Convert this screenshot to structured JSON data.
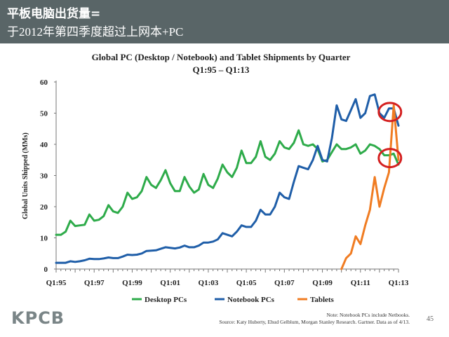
{
  "header": {
    "line1": "平板电脑出货量=",
    "line2": "于2012年第四季度超过上网本+PC"
  },
  "chart_data": {
    "type": "line",
    "title": "Global PC (Desktop / Notebook) and Tablet Shipments by Quarter",
    "subtitle": "Q1:95 – Q1:13",
    "ylabel": "Global Units Shipped (MMs)",
    "xlabel": "",
    "ylim": [
      0,
      60
    ],
    "yticks": [
      0,
      10,
      20,
      30,
      40,
      50,
      60
    ],
    "xtick_labels": [
      "Q1:95",
      "Q1:97",
      "Q1:99",
      "Q1:01",
      "Q1:03",
      "Q1:05",
      "Q1:07",
      "Q1:09",
      "Q1:11",
      "Q1:13"
    ],
    "xtick_index": [
      0,
      8,
      16,
      24,
      32,
      40,
      48,
      56,
      64,
      72
    ],
    "legend_position": "bottom",
    "series": [
      {
        "name": "Desktop PCs",
        "color": "#2eab4a",
        "start_index": 0,
        "values": [
          11,
          11,
          12,
          15.5,
          13.8,
          14,
          14.2,
          17.5,
          15.5,
          15.8,
          17,
          20.5,
          18.5,
          18,
          20,
          24.5,
          22.5,
          23,
          25,
          29.5,
          27,
          26,
          28.5,
          31.7,
          27.5,
          25,
          25,
          29.5,
          26.5,
          24.5,
          25.5,
          30.5,
          27,
          26,
          29,
          33.5,
          31,
          29.5,
          32.5,
          38,
          34,
          34,
          36,
          41,
          36,
          35,
          37,
          41,
          39,
          38.5,
          40.5,
          44.5,
          40,
          39.5,
          40,
          38.5,
          34.5,
          35,
          37.5,
          40,
          38.5,
          38.5,
          39,
          40,
          37,
          38,
          40,
          39.5,
          38.5,
          36.5,
          36.5,
          37,
          33.5
        ]
      },
      {
        "name": "Notebook PCs",
        "color": "#1f5ea8",
        "start_index": 0,
        "values": [
          2,
          2,
          2,
          2.5,
          2.3,
          2.5,
          2.8,
          3.3,
          3.2,
          3.2,
          3.4,
          3.7,
          3.5,
          3.5,
          4,
          4.6,
          4.5,
          4.6,
          5,
          5.8,
          5.9,
          6,
          6.5,
          7,
          6.8,
          6.6,
          6.9,
          7.5,
          7,
          7,
          7.5,
          8.5,
          8.5,
          8.8,
          9.5,
          11.5,
          11,
          10.5,
          12,
          14,
          13.5,
          13.5,
          15.5,
          19,
          17.5,
          17.5,
          20,
          24.5,
          23,
          22.5,
          28,
          33,
          32.5,
          32,
          35,
          39.5,
          35,
          34.5,
          42,
          52.5,
          48,
          47.5,
          51,
          54.5,
          48.5,
          50,
          55.5,
          56,
          50,
          48.5,
          51.5,
          51.5,
          46
        ]
      },
      {
        "name": "Tablets",
        "color": "#f07c22",
        "start_index": 60,
        "values": [
          0,
          3.5,
          5,
          10.5,
          8,
          14,
          19,
          29.5,
          20,
          26,
          31,
          52.5,
          35
        ]
      }
    ],
    "annotations": [
      "highlight-circle-notebook-peak",
      "highlight-circle-desktop-end"
    ]
  },
  "footer": {
    "logo": "KPCB",
    "note_line1": "Note: Notebook PCs include Netbooks.",
    "note_line2": "Source: Katy Huberty, Ehud Gelblum, Morgan Stanley Research. Gartner. Data as of 4/13.",
    "page_number": "45"
  }
}
